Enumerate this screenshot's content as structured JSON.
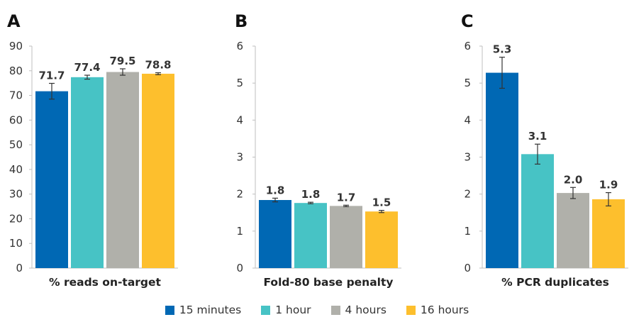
{
  "colors": {
    "series": [
      "#0068b4",
      "#47c3c5",
      "#b0b0aa",
      "#fdbf2d"
    ],
    "axis": "#bfbfbf",
    "error": "#333333"
  },
  "legend": [
    "15 minutes",
    "1 hour",
    "4 hours",
    "16 hours"
  ],
  "chart_data": [
    {
      "type": "bar",
      "panel": "A",
      "xlabel": "% reads on-target",
      "categories": [
        "15 minutes",
        "1 hour",
        "4 hours",
        "16 hours"
      ],
      "values": [
        71.7,
        77.4,
        79.5,
        78.8
      ],
      "value_labels": [
        "71.7",
        "77.4",
        "79.5",
        "78.8"
      ],
      "error": [
        3.2,
        0.8,
        1.3,
        0.4
      ],
      "ylim": [
        0,
        90
      ],
      "yticks": [
        0,
        10,
        20,
        30,
        40,
        50,
        60,
        70,
        80,
        90
      ],
      "grid": false
    },
    {
      "type": "bar",
      "panel": "B",
      "xlabel": "Fold-80 base penalty",
      "categories": [
        "15 minutes",
        "1 hour",
        "4 hours",
        "16 hours"
      ],
      "values": [
        1.84,
        1.76,
        1.68,
        1.53
      ],
      "value_labels": [
        "1.8",
        "1.8",
        "1.7",
        "1.5"
      ],
      "error": [
        0.05,
        0.02,
        0.02,
        0.03
      ],
      "ylim": [
        0,
        6
      ],
      "yticks": [
        0,
        1,
        2,
        3,
        4,
        5,
        6
      ],
      "grid": false
    },
    {
      "type": "bar",
      "panel": "C",
      "xlabel": "% PCR duplicates",
      "categories": [
        "15 minutes",
        "1 hour",
        "4 hours",
        "16 hours"
      ],
      "values": [
        5.28,
        3.08,
        2.03,
        1.86
      ],
      "value_labels": [
        "5.3",
        "3.1",
        "2.0",
        "1.9"
      ],
      "error": [
        0.42,
        0.27,
        0.15,
        0.18
      ],
      "ylim": [
        0,
        6
      ],
      "yticks": [
        0,
        1,
        2,
        3,
        4,
        5,
        6
      ],
      "grid": false
    }
  ]
}
